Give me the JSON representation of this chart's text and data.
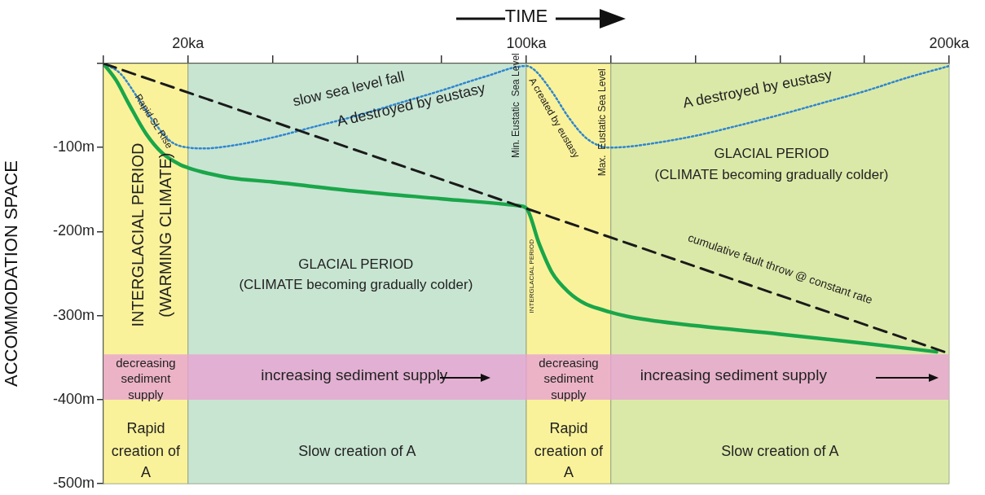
{
  "chart_data": {
    "type": "line",
    "xlabel": "TIME",
    "ylabel": "ACCOMMODATION SPACE",
    "xlim": [
      0,
      200
    ],
    "ylim": [
      -500,
      0
    ],
    "xticks": [
      {
        "value": 0,
        "label": null
      },
      {
        "value": 20,
        "label": "20ka"
      },
      {
        "value": 40,
        "label": null
      },
      {
        "value": 60,
        "label": null
      },
      {
        "value": 80,
        "label": null
      },
      {
        "value": 100,
        "label": "100ka"
      },
      {
        "value": 120,
        "label": null
      },
      {
        "value": 140,
        "label": null
      },
      {
        "value": 160,
        "label": null
      },
      {
        "value": 180,
        "label": null
      },
      {
        "value": 200,
        "label": "200ka"
      }
    ],
    "yticks": [
      {
        "value": 0,
        "label": null
      },
      {
        "value": -100,
        "label": "-100m"
      },
      {
        "value": -200,
        "label": "-200m"
      },
      {
        "value": -300,
        "label": "-300m"
      },
      {
        "value": -400,
        "label": "-400m"
      },
      {
        "value": -500,
        "label": "-500m"
      }
    ],
    "marker": "none",
    "series": [
      {
        "color": "#1a1a1a",
        "line_style": "dashed",
        "x": [
          0,
          200
        ],
        "values": [
          0,
          -345
        ]
      },
      {
        "color": "#1aa64a",
        "line_style": "solid",
        "x": [
          0,
          3,
          6,
          10,
          14,
          18,
          20,
          25,
          30,
          40,
          60,
          80,
          98,
          100,
          103,
          106,
          110,
          114,
          118,
          120,
          125,
          140,
          160,
          180,
          197
        ],
        "values": [
          0,
          -20,
          -48,
          -83,
          -107,
          -120,
          -124,
          -131,
          -136,
          -141,
          -152,
          -161,
          -169,
          -172,
          -214,
          -248,
          -272,
          -286,
          -293,
          -296,
          -302,
          -312,
          -322,
          -333,
          -343
        ]
      },
      {
        "color": "#2f86d0",
        "line_style": "dotted",
        "x": [
          0,
          4,
          8,
          12,
          16,
          20,
          24,
          30,
          40,
          50,
          60,
          70,
          80,
          90,
          100,
          102,
          106,
          110,
          114,
          118,
          120,
          124,
          130,
          140,
          150,
          160,
          170,
          180,
          190,
          200
        ],
        "values": [
          0,
          -12,
          -40,
          -70,
          -93,
          -100,
          -101,
          -98,
          -88,
          -75,
          -62,
          -47,
          -32,
          -16,
          -3,
          -8,
          -33,
          -64,
          -88,
          -99,
          -100,
          -99,
          -95,
          -86,
          -74,
          -61,
          -47,
          -33,
          -17,
          -3
        ]
      }
    ],
    "bands": [
      {
        "axis": "x",
        "from": 0,
        "to": 20,
        "color": "#faf29a"
      },
      {
        "axis": "x",
        "from": 20,
        "to": 100,
        "color": "#c8e5d2"
      },
      {
        "axis": "x",
        "from": 100,
        "to": 120,
        "color": "#faf29a"
      },
      {
        "axis": "x",
        "from": 120,
        "to": 200,
        "color": "#dbe9a8"
      },
      {
        "axis": "y",
        "from": -400,
        "to": -346,
        "color": "#e9a3d2"
      }
    ],
    "annotations": [
      "slow sea level fall",
      "A destroyed by eustasy",
      "A destroyed by eustasy",
      "GLACIAL PERIOD",
      "(CLIMATE becoming gradually colder)",
      "GLACIAL PERIOD",
      "(CLIMATE becoming gradually colder)",
      "INTERGLACIAL PERIOD",
      "(WARMING CLIMATE)",
      {
        "text": "Rapid SL Rise",
        "x": 11.8,
        "y": -69
      },
      "Min. Eustatic  Sea Level",
      "A created by eustasy",
      "Max.  Eustatic Sea Level",
      "INTERGLACIAL PERIOD",
      "cumulative fault throw @ constant rate",
      "decreasing",
      "sediment",
      "supply",
      "decreasing",
      "sediment",
      "supply",
      "increasing sediment supply",
      "increasing sediment supply",
      "Rapid",
      "creation of",
      "A",
      "Rapid",
      "creation of",
      "A",
      "Slow creation of A",
      "Slow creation of A"
    ]
  }
}
